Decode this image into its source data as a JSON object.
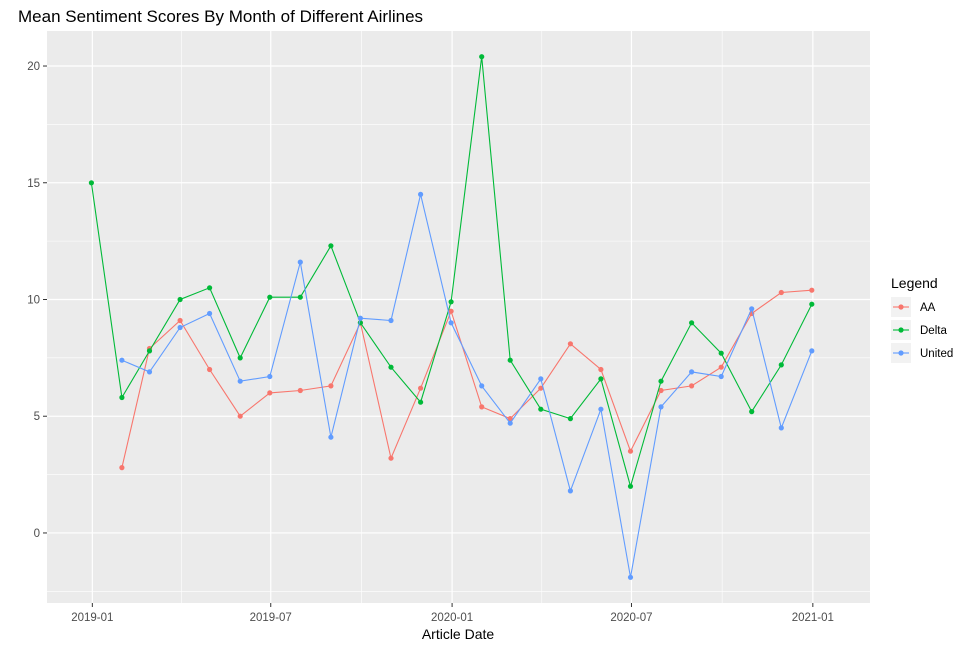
{
  "chart_data": {
    "type": "line",
    "title": "Mean Sentiment Scores By Month of Different Airlines",
    "xlabel": "Article Date",
    "ylabel": "",
    "x_ticks": [
      "2019-01",
      "2019-07",
      "2020-01",
      "2020-07",
      "2021-01"
    ],
    "y_ticks": [
      0,
      5,
      10,
      15,
      20
    ],
    "xlim": [
      "2018-11-16",
      "2021-02-28"
    ],
    "ylim": [
      -3.0,
      21.5
    ],
    "grid": true,
    "legend": {
      "title": "Legend",
      "placement": "right"
    },
    "series": [
      {
        "name": "AA",
        "color": "#F8766D",
        "points": [
          [
            "2019-01-31",
            2.8
          ],
          [
            "2019-02-28",
            7.9
          ],
          [
            "2019-03-31",
            9.1
          ],
          [
            "2019-04-30",
            7.0
          ],
          [
            "2019-05-31",
            5.0
          ],
          [
            "2019-06-30",
            6.0
          ],
          [
            "2019-07-31",
            6.1
          ],
          [
            "2019-08-31",
            6.3
          ],
          [
            "2019-09-30",
            9.0
          ],
          [
            "2019-10-31",
            3.2
          ],
          [
            "2019-11-30",
            6.2
          ],
          [
            "2019-12-31",
            9.5
          ],
          [
            "2020-01-31",
            5.4
          ],
          [
            "2020-02-29",
            4.9
          ],
          [
            "2020-03-31",
            6.2
          ],
          [
            "2020-04-30",
            8.1
          ],
          [
            "2020-05-31",
            7.0
          ],
          [
            "2020-06-30",
            3.5
          ],
          [
            "2020-07-31",
            6.1
          ],
          [
            "2020-08-31",
            6.3
          ],
          [
            "2020-09-30",
            7.1
          ],
          [
            "2020-10-31",
            9.4
          ],
          [
            "2020-11-30",
            10.3
          ],
          [
            "2020-12-31",
            10.4
          ]
        ]
      },
      {
        "name": "Delta",
        "color": "#00BA38",
        "points": [
          [
            "2018-12-31",
            15.0
          ],
          [
            "2019-01-31",
            5.8
          ],
          [
            "2019-02-28",
            7.8
          ],
          [
            "2019-03-31",
            10.0
          ],
          [
            "2019-04-30",
            10.5
          ],
          [
            "2019-05-31",
            7.5
          ],
          [
            "2019-06-30",
            10.1
          ],
          [
            "2019-07-31",
            10.1
          ],
          [
            "2019-08-31",
            12.3
          ],
          [
            "2019-09-30",
            9.0
          ],
          [
            "2019-10-31",
            7.1
          ],
          [
            "2019-11-30",
            5.6
          ],
          [
            "2019-12-31",
            9.9
          ],
          [
            "2020-01-31",
            20.4
          ],
          [
            "2020-02-29",
            7.4
          ],
          [
            "2020-03-31",
            5.3
          ],
          [
            "2020-04-30",
            4.9
          ],
          [
            "2020-05-31",
            6.6
          ],
          [
            "2020-06-30",
            2.0
          ],
          [
            "2020-07-31",
            6.5
          ],
          [
            "2020-08-31",
            9.0
          ],
          [
            "2020-09-30",
            7.7
          ],
          [
            "2020-10-31",
            5.2
          ],
          [
            "2020-11-30",
            7.2
          ],
          [
            "2020-12-31",
            9.8
          ]
        ]
      },
      {
        "name": "United",
        "color": "#619CFF",
        "points": [
          [
            "2019-01-31",
            7.4
          ],
          [
            "2019-02-28",
            6.9
          ],
          [
            "2019-03-31",
            8.8
          ],
          [
            "2019-04-30",
            9.4
          ],
          [
            "2019-05-31",
            6.5
          ],
          [
            "2019-06-30",
            6.7
          ],
          [
            "2019-07-31",
            11.6
          ],
          [
            "2019-08-31",
            4.1
          ],
          [
            "2019-09-30",
            9.2
          ],
          [
            "2019-10-31",
            9.1
          ],
          [
            "2019-11-30",
            14.5
          ],
          [
            "2019-12-31",
            9.0
          ],
          [
            "2020-01-31",
            6.3
          ],
          [
            "2020-02-29",
            4.7
          ],
          [
            "2020-03-31",
            6.6
          ],
          [
            "2020-04-30",
            1.8
          ],
          [
            "2020-05-31",
            5.3
          ],
          [
            "2020-06-30",
            -1.9
          ],
          [
            "2020-07-31",
            5.4
          ],
          [
            "2020-08-31",
            6.9
          ],
          [
            "2020-09-30",
            6.7
          ],
          [
            "2020-10-31",
            9.6
          ],
          [
            "2020-11-30",
            4.5
          ],
          [
            "2020-12-31",
            7.8
          ]
        ]
      }
    ]
  }
}
